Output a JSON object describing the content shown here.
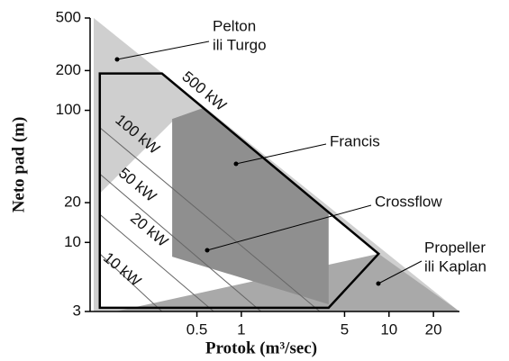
{
  "chart_data": {
    "type": "region",
    "x_label": "Protok (m³/sec)",
    "y_label": "Neto pad (m)",
    "log_x": true,
    "log_y": true,
    "xlim": [
      0.1,
      30
    ],
    "ylim": [
      3,
      500
    ],
    "xticks": [
      0.5,
      1,
      5,
      10,
      20
    ],
    "yticks": [
      3,
      10,
      20,
      100,
      200,
      500
    ],
    "regions": [
      {
        "label": [
          "Pelton",
          "ili Turgo"
        ],
        "color": "#cfcfcf",
        "points": [
          [
            0.1,
            500
          ],
          [
            30,
            3
          ],
          [
            0.1,
            3
          ]
        ]
      },
      {
        "label": [
          "Crossflow"
        ],
        "color": "#ffffff",
        "points": [
          [
            0.11,
            23.5
          ],
          [
            0.34,
            82
          ],
          [
            0.55,
            104
          ],
          [
            8.5,
            8.2
          ],
          [
            3.9,
            3.2
          ],
          [
            0.11,
            3.2
          ]
        ]
      },
      {
        "label": [
          "Propeller",
          "ili Kaplan"
        ],
        "color": "#a9a9a9",
        "points": [
          [
            0.14,
            3
          ],
          [
            8.5,
            8.2
          ],
          [
            30,
            3
          ]
        ]
      },
      {
        "label": [
          "Francis"
        ],
        "color": "#8f8f8f",
        "points": [
          [
            0.34,
            86
          ],
          [
            0.55,
            104
          ],
          [
            3.9,
            16.9
          ],
          [
            3.9,
            3.4
          ],
          [
            0.34,
            7.8
          ]
        ]
      }
    ],
    "outline": [
      [
        0.11,
        190
      ],
      [
        0.29,
        190
      ],
      [
        8.5,
        8.2
      ],
      [
        3.9,
        3.2
      ],
      [
        0.11,
        3.2
      ]
    ],
    "power_lines": [
      {
        "label": "500 kW",
        "points": [
          [
            0.29,
            190
          ],
          [
            8.5,
            8.2
          ]
        ]
      },
      {
        "label": "100 kW",
        "points": [
          [
            0.11,
            74
          ],
          [
            3.4,
            3
          ]
        ]
      },
      {
        "label": "50 kW",
        "points": [
          [
            0.11,
            33
          ],
          [
            1.36,
            3
          ]
        ]
      },
      {
        "label": "20 kW",
        "points": [
          [
            0.11,
            16.3
          ],
          [
            0.65,
            3
          ]
        ]
      },
      {
        "label": "10 kW",
        "points": [
          [
            0.11,
            8.2
          ],
          [
            0.29,
            3
          ]
        ]
      }
    ]
  }
}
